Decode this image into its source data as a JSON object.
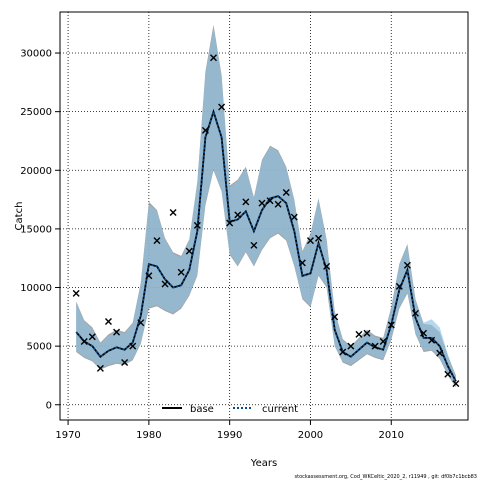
{
  "chart_data": {
    "type": "line",
    "xlabel": "Years",
    "ylabel": "Catch",
    "xlim": [
      1969.0,
      2019.5
    ],
    "ylim": [
      -1300,
      33500
    ],
    "x_ticks": [
      1970,
      1980,
      1990,
      2000,
      2010
    ],
    "y_ticks": [
      0,
      5000,
      10000,
      15000,
      20000,
      25000,
      30000
    ],
    "grid": true,
    "legend_placement": "bottom-center",
    "footer": "stockassessment.org, Cod_WKCeltic_2020_2, r11949 , git: df0b7c1bcb83",
    "colors": {
      "base_band": "#8c8c8c",
      "current_band": "#8ec3e6",
      "base_line": "#000000",
      "current_line": "#0a4a8a",
      "observed": "#000000"
    },
    "years": [
      1971,
      1972,
      1973,
      1974,
      1975,
      1976,
      1977,
      1978,
      1979,
      1980,
      1981,
      1982,
      1983,
      1984,
      1985,
      1986,
      1987,
      1988,
      1989,
      1990,
      1991,
      1992,
      1993,
      1994,
      1995,
      1996,
      1997,
      1998,
      1999,
      2000,
      2001,
      2002,
      2003,
      2004,
      2005,
      2006,
      2007,
      2008,
      2009,
      2010,
      2011,
      2012,
      2013,
      2014,
      2015,
      2016,
      2017,
      2018
    ],
    "series": [
      {
        "name": "base",
        "values": [
          6200,
          5400,
          5000,
          4100,
          4600,
          4900,
          4700,
          5300,
          7600,
          12000,
          11800,
          10700,
          10000,
          10200,
          11500,
          14800,
          22800,
          25000,
          22800,
          15600,
          15800,
          16500,
          14800,
          16600,
          17600,
          17800,
          17200,
          14800,
          11000,
          11200,
          13800,
          11500,
          6400,
          4500,
          4100,
          4700,
          5300,
          4900,
          4700,
          6800,
          9800,
          11500,
          7400,
          5700,
          5700,
          5000,
          3300,
          2000
        ],
        "lower": [
          4500,
          4000,
          3700,
          3000,
          3300,
          3500,
          3400,
          3800,
          5200,
          8200,
          8400,
          8000,
          7700,
          8200,
          9300,
          11000,
          17000,
          20000,
          18200,
          12800,
          11800,
          13000,
          11800,
          13200,
          14200,
          14600,
          14000,
          11800,
          9000,
          8300,
          11000,
          10000,
          5000,
          3600,
          3300,
          3800,
          4300,
          4000,
          3800,
          5500,
          8200,
          9500,
          6000,
          4500,
          4600,
          3900,
          2500,
          1500
        ],
        "upper": [
          8800,
          7200,
          6600,
          5300,
          6000,
          6400,
          6200,
          7000,
          10400,
          17300,
          16600,
          14200,
          13000,
          12700,
          14100,
          19000,
          28400,
          32400,
          28100,
          18700,
          19200,
          20300,
          17700,
          20900,
          22100,
          21700,
          20300,
          17500,
          13100,
          14600,
          17600,
          14100,
          8000,
          5600,
          5000,
          5700,
          6400,
          5900,
          5700,
          8300,
          12000,
          13700,
          9000,
          6900,
          6800,
          6200,
          4200,
          2500
        ]
      },
      {
        "name": "current",
        "values": [
          6200,
          5400,
          5000,
          4100,
          4600,
          4900,
          4700,
          5300,
          7600,
          12000,
          11800,
          10700,
          10000,
          10200,
          11500,
          14800,
          22800,
          25000,
          22800,
          15600,
          15800,
          16500,
          14800,
          16600,
          17600,
          17800,
          17200,
          14800,
          11000,
          11200,
          13800,
          11500,
          6400,
          4500,
          4100,
          4700,
          5300,
          4900,
          4700,
          6800,
          9800,
          11500,
          7400,
          5700,
          5700,
          5000,
          3300,
          2000
        ],
        "lower": [
          4600,
          4100,
          3800,
          3100,
          3400,
          3600,
          3500,
          3900,
          5300,
          8300,
          8500,
          8100,
          7800,
          8300,
          9400,
          11100,
          17200,
          20100,
          18300,
          12900,
          11900,
          13100,
          11900,
          13300,
          14300,
          14700,
          14100,
          11900,
          9100,
          8400,
          11100,
          10100,
          5100,
          3700,
          3400,
          3900,
          4400,
          4100,
          3900,
          5600,
          8300,
          9600,
          6100,
          4600,
          4700,
          4000,
          2600,
          1600
        ],
        "upper": [
          8700,
          7100,
          6500,
          5200,
          5900,
          6300,
          6100,
          6900,
          10300,
          17100,
          16500,
          14100,
          12900,
          12600,
          14000,
          18900,
          28200,
          32200,
          28000,
          18600,
          19100,
          20200,
          17600,
          20800,
          22000,
          21600,
          20200,
          17400,
          13000,
          14500,
          17500,
          14000,
          7900,
          5500,
          4900,
          5600,
          6300,
          5800,
          5600,
          8200,
          11900,
          13600,
          8900,
          7000,
          7300,
          6600,
          4300,
          2400
        ]
      }
    ],
    "observed": {
      "years": [
        1971,
        1972,
        1973,
        1974,
        1975,
        1976,
        1977,
        1978,
        1979,
        1980,
        1981,
        1982,
        1983,
        1984,
        1985,
        1986,
        1987,
        1988,
        1989,
        1990,
        1991,
        1992,
        1993,
        1994,
        1995,
        1996,
        1997,
        1998,
        1999,
        2000,
        2001,
        2002,
        2003,
        2004,
        2005,
        2006,
        2007,
        2008,
        2009,
        2010,
        2011,
        2012,
        2013,
        2014,
        2015,
        2016,
        2017,
        2018
      ],
      "values": [
        9500,
        5400,
        5800,
        3100,
        7100,
        6200,
        3600,
        5000,
        7000,
        11000,
        14000,
        10300,
        16400,
        11300,
        13100,
        15300,
        23400,
        29600,
        25400,
        15500,
        16200,
        17300,
        13600,
        17200,
        17400,
        17100,
        18100,
        16000,
        12100,
        14000,
        14200,
        11800,
        7500,
        4500,
        5000,
        6000,
        6100,
        5000,
        5400,
        6800,
        10100,
        11900,
        7800,
        6100,
        5500,
        4400,
        2600,
        1800
      ]
    }
  }
}
